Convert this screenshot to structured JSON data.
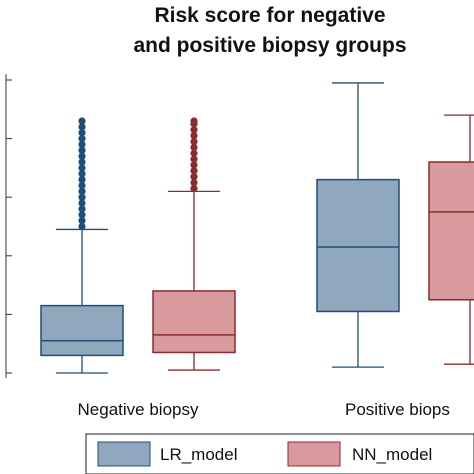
{
  "chart_data": {
    "type": "box",
    "title_lines": [
      "Risk score for negative",
      "and positive biopsy groups"
    ],
    "categories": [
      "Negative biopsy",
      "Positive biops"
    ],
    "ylim": [
      0,
      1.05
    ],
    "grid": false,
    "legend_placement": "bottom",
    "series": [
      {
        "name": "LR_model",
        "fill": "#8fa8be",
        "stroke": "#1f4e79",
        "boxes": [
          {
            "whisker_low": 0.0,
            "q1": 0.06,
            "median": 0.11,
            "q3": 0.23,
            "whisker_high": 0.49,
            "outliers": [
              0.5,
              0.52,
              0.54,
              0.56,
              0.58,
              0.6,
              0.62,
              0.64,
              0.66,
              0.68,
              0.7,
              0.72,
              0.74,
              0.76,
              0.78,
              0.8,
              0.82,
              0.84,
              0.86
            ]
          },
          {
            "whisker_low": 0.02,
            "q1": 0.21,
            "median": 0.43,
            "q3": 0.66,
            "whisker_high": 0.99,
            "outliers": []
          }
        ]
      },
      {
        "name": "NN_model",
        "fill": "#d99a9d",
        "stroke": "#8b2a33",
        "boxes": [
          {
            "whisker_low": 0.01,
            "q1": 0.07,
            "median": 0.13,
            "q3": 0.28,
            "whisker_high": 0.62,
            "outliers": [
              0.63,
              0.65,
              0.67,
              0.69,
              0.71,
              0.73,
              0.75,
              0.77,
              0.79,
              0.81,
              0.83,
              0.85,
              0.86
            ]
          },
          {
            "whisker_low": 0.03,
            "q1": 0.25,
            "median": 0.55,
            "q3": 0.72,
            "whisker_high": 0.88,
            "outliers": []
          }
        ]
      }
    ]
  }
}
